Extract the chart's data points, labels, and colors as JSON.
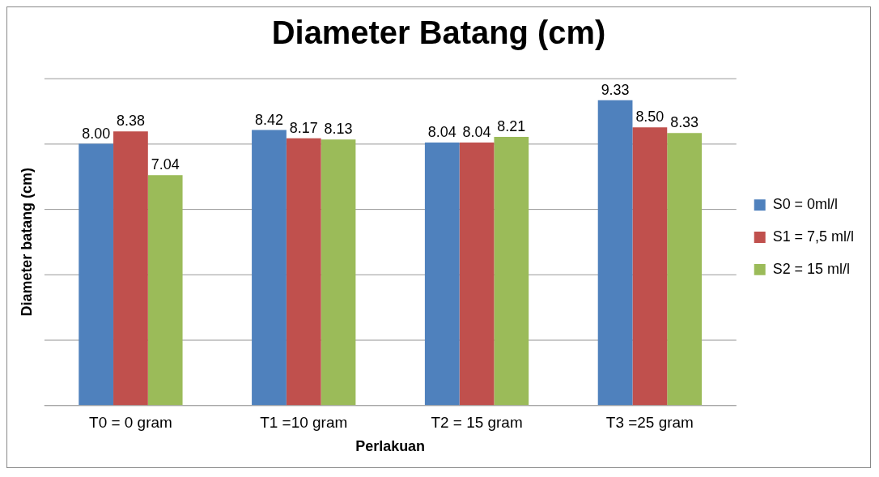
{
  "chart_data": {
    "type": "bar",
    "title": "Diameter Batang (cm)",
    "xlabel": "Perlakuan",
    "ylabel": "Diameter batang (cm)",
    "categories": [
      "T0 = 0 gram",
      "T1 =10 gram",
      "T2 = 15 gram",
      "T3 =25 gram"
    ],
    "series": [
      {
        "name": "S0 = 0ml/l",
        "color": "#4f81bd",
        "values": [
          8.0,
          8.42,
          8.04,
          9.33
        ],
        "value_labels": [
          "8.00",
          "8.42",
          "8.04",
          "9.33"
        ]
      },
      {
        "name": "S1 = 7,5 ml/l",
        "color": "#c0504d",
        "values": [
          8.38,
          8.17,
          8.04,
          8.5
        ],
        "value_labels": [
          "8.38",
          "8.17",
          "8.04",
          "8.50"
        ]
      },
      {
        "name": "S2 = 15 ml/l",
        "color": "#9bbb59",
        "values": [
          7.04,
          8.13,
          8.21,
          8.33
        ],
        "value_labels": [
          "7.04",
          "8.13",
          "8.21",
          "8.33"
        ]
      }
    ],
    "ylim": [
      0,
      10
    ],
    "yticks": [
      {
        "value": 0,
        "label": null
      },
      {
        "value": 2,
        "label": null
      },
      {
        "value": 4,
        "label": null
      },
      {
        "value": 6,
        "label": null
      },
      {
        "value": 8,
        "label": null
      },
      {
        "value": 10,
        "label": null
      }
    ],
    "grid": "y",
    "legend": "right"
  }
}
